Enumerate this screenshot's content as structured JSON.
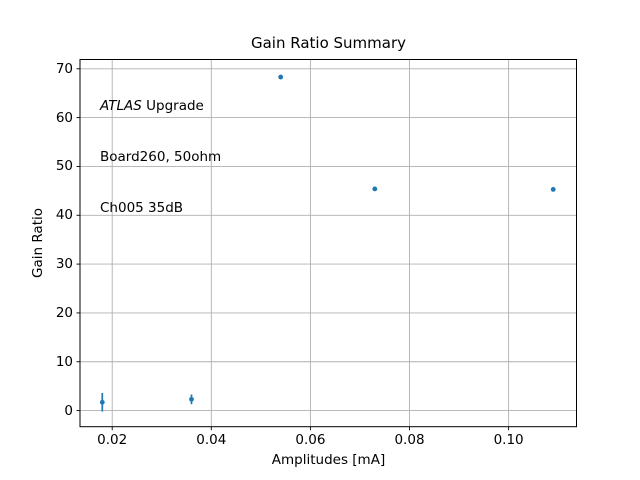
{
  "chart_data": {
    "type": "scatter",
    "title": "Gain Ratio Summary",
    "xlabel": "Amplitudes [mA]",
    "ylabel": "Gain Ratio",
    "x": [
      0.018,
      0.036,
      0.054,
      0.073,
      0.109
    ],
    "y": [
      1.7,
      2.3,
      68.3,
      45.4,
      45.3
    ],
    "yerr": [
      1.9,
      1.0,
      0,
      0,
      0
    ],
    "xlim": [
      0.0135,
      0.1137
    ],
    "ylim": [
      -3.3,
      71.9
    ],
    "xticks": [
      0.02,
      0.04,
      0.06,
      0.08,
      0.1
    ],
    "xtick_labels": [
      "0.02",
      "0.04",
      "0.06",
      "0.08",
      "0.10"
    ],
    "yticks": [
      0,
      10,
      20,
      30,
      40,
      50,
      60,
      70
    ],
    "ytick_labels": [
      "0",
      "10",
      "20",
      "30",
      "40",
      "50",
      "60",
      "70"
    ],
    "grid": true,
    "legend_position": "none",
    "marker": "point",
    "colors": {
      "marker": "#1f77b4",
      "grid": "#b0b0b0",
      "spine": "#000000",
      "text": "#000000",
      "background": "#ffffff"
    },
    "annotation": {
      "line1_italic": "ATLAS",
      "line1_rest": " Upgrade",
      "line2": "Board260, 50ohm",
      "line3": "Ch005 35dB"
    }
  }
}
